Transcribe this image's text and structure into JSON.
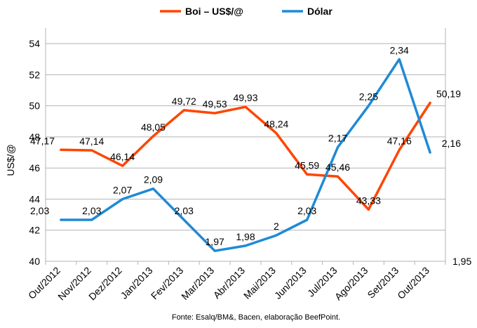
{
  "chart_data": {
    "type": "line",
    "categories": [
      "Out/2012",
      "Nov/2012",
      "Dez/2012",
      "Jan/2013",
      "Fev/2013",
      "Mar/2013",
      "Abr/2013",
      "Mai/2013",
      "Jun/2013",
      "Jul/2013",
      "Ago/2013",
      "Set/2013",
      "Out/2013"
    ],
    "series": [
      {
        "name": "Boi – US$/@",
        "axis": "left",
        "color": "#ff4500",
        "values": [
          47.17,
          47.14,
          46.14,
          48.05,
          49.72,
          49.53,
          49.93,
          48.24,
          45.59,
          45.46,
          43.33,
          47.16,
          50.19
        ],
        "labels": [
          "47,17",
          "47,14",
          "46,14",
          "48,05",
          "49,72",
          "49,53",
          "49,93",
          "48,24",
          "45,59",
          "45,46",
          "43,33",
          "47,16",
          "50,19"
        ]
      },
      {
        "name": "Dólar",
        "axis": "right",
        "color": "#1e8ad6",
        "values": [
          2.03,
          2.03,
          2.07,
          2.09,
          2.03,
          1.97,
          1.98,
          2.0,
          2.03,
          2.17,
          2.25,
          2.34,
          2.16
        ],
        "labels": [
          "2,03",
          "2,03",
          "2,07",
          "2,09",
          "2,03",
          "1,97",
          "1,98",
          "2",
          "2,03",
          "2,17",
          "2,25",
          "2,34",
          "2,16"
        ]
      }
    ],
    "ylabel": "US$/@",
    "ylim": [
      40,
      55
    ],
    "yticks": [
      "40",
      "42",
      "44",
      "46",
      "48",
      "50",
      "52",
      "54"
    ],
    "y2lim": [
      1.95,
      2.4
    ],
    "y2ticks": [
      "1,95"
    ],
    "grid": true,
    "legend_position": "top-center",
    "source": "Fonte: Esalq/BM&, Bacen, elaboração BeefPoint."
  }
}
